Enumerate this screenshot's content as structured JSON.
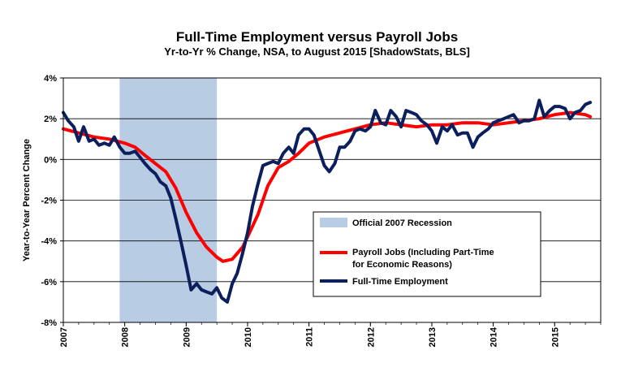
{
  "chart_data": {
    "type": "line",
    "title": "Full-Time Employment versus Payroll Jobs",
    "subtitle": "Yr-to-Yr % Change, NSA, to August 2015 [ShadowStats, BLS]",
    "ylabel": "Year-to-Year Percent Change",
    "xlabel": "",
    "ylim": [
      -8,
      4
    ],
    "yticks": [
      -8,
      -6,
      -4,
      -2,
      0,
      2,
      4
    ],
    "ytick_labels": [
      "-8%",
      "-6%",
      "-4%",
      "-2%",
      "0%",
      "2%",
      "4%"
    ],
    "xlim": [
      2007.0,
      2015.75
    ],
    "xtick_labels": [
      "2007",
      "2008",
      "2009",
      "2010",
      "2011",
      "2012",
      "2013",
      "2014",
      "2015"
    ],
    "grid": "horizontal",
    "legend_position": "lower-right",
    "recession": {
      "label": "Official 2007 Recession",
      "start": 2007.917,
      "end": 2009.5,
      "color": "#b8cce4"
    },
    "series": [
      {
        "name": "Payroll Jobs (Including Part-Time for Economic Reasons)",
        "color": "#ff0000",
        "x": [
          2007.0,
          2007.25,
          2007.5,
          2007.75,
          2008.0,
          2008.17,
          2008.33,
          2008.5,
          2008.67,
          2008.83,
          2009.0,
          2009.17,
          2009.33,
          2009.5,
          2009.6,
          2009.75,
          2009.92,
          2010.0,
          2010.17,
          2010.33,
          2010.5,
          2010.67,
          2010.83,
          2011.0,
          2011.25,
          2011.5,
          2011.75,
          2012.0,
          2012.25,
          2012.5,
          2012.75,
          2013.0,
          2013.25,
          2013.5,
          2013.75,
          2014.0,
          2014.25,
          2014.5,
          2014.75,
          2015.0,
          2015.25,
          2015.5,
          2015.58
        ],
        "values": [
          1.5,
          1.3,
          1.1,
          1.0,
          0.8,
          0.6,
          0.2,
          -0.2,
          -0.6,
          -1.4,
          -2.6,
          -3.6,
          -4.3,
          -4.8,
          -5.0,
          -4.9,
          -4.3,
          -3.8,
          -2.7,
          -1.3,
          -0.4,
          -0.1,
          0.3,
          0.8,
          1.1,
          1.3,
          1.5,
          1.7,
          1.8,
          1.7,
          1.6,
          1.7,
          1.7,
          1.8,
          1.8,
          1.7,
          1.8,
          1.9,
          2.0,
          2.2,
          2.3,
          2.2,
          2.1
        ]
      },
      {
        "name": "Full-Time Employment",
        "color": "#0b1f5c",
        "x": [
          2007.0,
          2007.08,
          2007.17,
          2007.25,
          2007.33,
          2007.42,
          2007.5,
          2007.58,
          2007.67,
          2007.75,
          2007.83,
          2007.92,
          2008.0,
          2008.08,
          2008.17,
          2008.25,
          2008.33,
          2008.42,
          2008.5,
          2008.58,
          2008.67,
          2008.75,
          2008.83,
          2008.92,
          2009.0,
          2009.08,
          2009.17,
          2009.25,
          2009.33,
          2009.42,
          2009.5,
          2009.58,
          2009.67,
          2009.75,
          2009.83,
          2009.92,
          2010.0,
          2010.08,
          2010.17,
          2010.25,
          2010.33,
          2010.42,
          2010.5,
          2010.58,
          2010.67,
          2010.75,
          2010.83,
          2010.92,
          2011.0,
          2011.08,
          2011.17,
          2011.25,
          2011.33,
          2011.42,
          2011.5,
          2011.58,
          2011.67,
          2011.75,
          2011.83,
          2011.92,
          2012.0,
          2012.08,
          2012.17,
          2012.25,
          2012.33,
          2012.42,
          2012.5,
          2012.58,
          2012.67,
          2012.75,
          2012.83,
          2012.92,
          2013.0,
          2013.08,
          2013.17,
          2013.25,
          2013.33,
          2013.42,
          2013.5,
          2013.58,
          2013.67,
          2013.75,
          2013.83,
          2013.92,
          2014.0,
          2014.08,
          2014.17,
          2014.25,
          2014.33,
          2014.42,
          2014.5,
          2014.58,
          2014.67,
          2014.75,
          2014.83,
          2014.92,
          2015.0,
          2015.08,
          2015.17,
          2015.25,
          2015.33,
          2015.42,
          2015.5,
          2015.58
        ],
        "values": [
          2.3,
          1.9,
          1.6,
          0.9,
          1.6,
          0.9,
          1.0,
          0.7,
          0.8,
          0.7,
          1.1,
          0.6,
          0.3,
          0.3,
          0.4,
          0.1,
          -0.2,
          -0.5,
          -0.7,
          -1.1,
          -1.3,
          -1.9,
          -2.9,
          -4.1,
          -5.2,
          -6.4,
          -6.1,
          -6.4,
          -6.5,
          -6.6,
          -6.3,
          -6.8,
          -7.0,
          -6.1,
          -5.6,
          -4.6,
          -3.6,
          -2.3,
          -1.2,
          -0.3,
          -0.2,
          -0.1,
          -0.2,
          0.3,
          0.6,
          0.3,
          1.2,
          1.5,
          1.5,
          1.2,
          0.4,
          -0.3,
          -0.6,
          -0.2,
          0.6,
          0.6,
          0.9,
          1.4,
          1.5,
          1.4,
          1.6,
          2.4,
          1.8,
          1.7,
          2.4,
          2.1,
          1.6,
          2.4,
          2.3,
          2.2,
          1.9,
          1.7,
          1.4,
          0.8,
          1.6,
          1.4,
          1.7,
          1.2,
          1.3,
          1.3,
          0.6,
          1.1,
          1.3,
          1.5,
          1.8,
          1.9,
          2.0,
          2.1,
          2.2,
          1.8,
          1.9,
          1.9,
          2.0,
          2.9,
          2.1,
          2.4,
          2.6,
          2.6,
          2.5,
          2.0,
          2.3,
          2.4,
          2.7,
          2.8
        ]
      }
    ],
    "legend_entries": [
      {
        "label_lines": [
          "Official 2007 Recession"
        ]
      },
      {
        "label_lines": [
          "Payroll Jobs (Including Part-Time",
          "for Economic Reasons)"
        ]
      },
      {
        "label_lines": [
          "Full-Time Employment"
        ]
      }
    ]
  }
}
